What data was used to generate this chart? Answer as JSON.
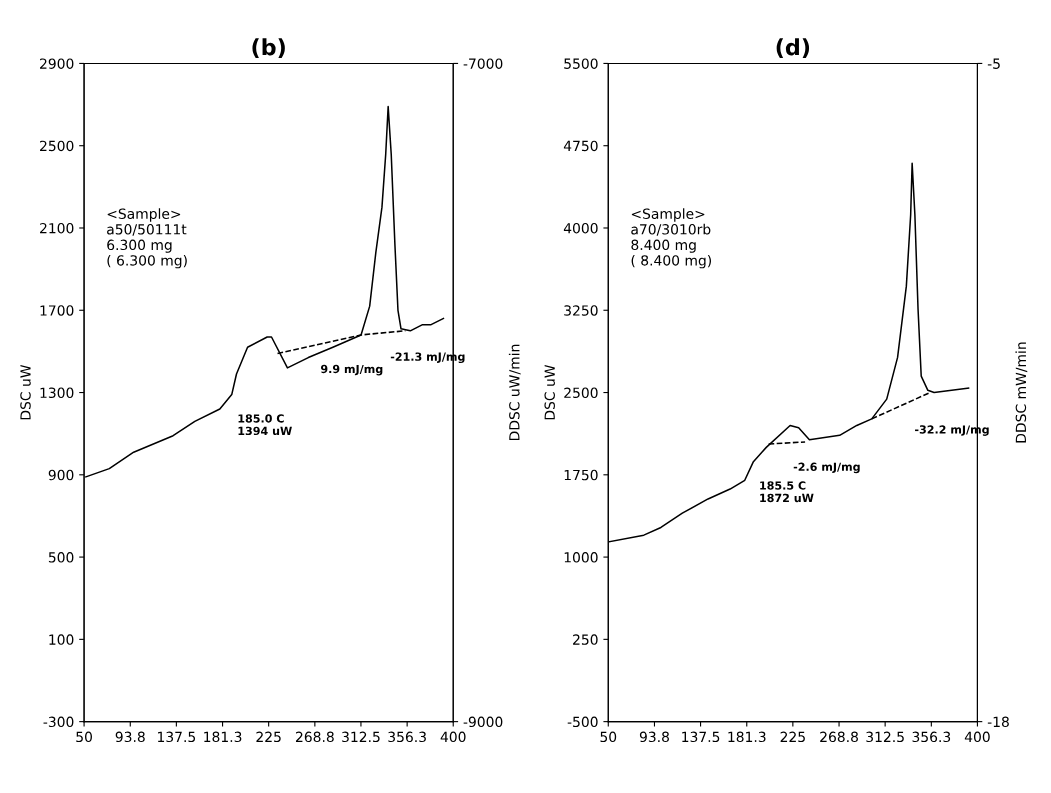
{
  "chart_data": [
    {
      "type": "line",
      "title": "(b)",
      "ylabel": "DSC uW",
      "y2label": "DDSC uW/min",
      "xlim": [
        50,
        400
      ],
      "xticks": [
        50,
        93.8,
        137.5,
        181.3,
        225,
        268.8,
        312.5,
        356.3,
        400
      ],
      "ylim": [
        -300,
        2900
      ],
      "yticks": [
        2900,
        2500,
        2100,
        1700,
        1300,
        900,
        500,
        100,
        -300
      ],
      "y2lim": [
        -9000,
        -7000
      ],
      "y2ticks": [
        -9000,
        -7000
      ],
      "grid": false,
      "marker": "none",
      "series": [
        {
          "color": "#000000",
          "line_style": "solid",
          "x": [
            51.7,
            73.9,
            97,
            134.4,
            155,
            178.7,
            190,
            194.5,
            205,
            223.6,
            227.7,
            242.8,
            262.6,
            285.9,
            312.6,
            320.8,
            326.6,
            332.4,
            336,
            338.3,
            341.2,
            344.7,
            347.6,
            350.5,
            359.3,
            370.9,
            379,
            390.7
          ],
          "values": [
            890,
            930,
            1010,
            1090,
            1160,
            1220,
            1290,
            1390,
            1520,
            1570,
            1570,
            1420,
            1470,
            1520,
            1580,
            1720,
            1980,
            2200,
            2460,
            2690,
            2460,
            2020,
            1700,
            1610,
            1600,
            1630,
            1630,
            1660
          ]
        },
        {
          "color": "#000000",
          "line_style": "dashed",
          "x": [
            233.4,
            312.6,
            354.6
          ],
          "values": [
            1490,
            1580,
            1600
          ]
        }
      ],
      "annotations": [
        {
          "text": "9.9 mJ/mg",
          "x": 268.8,
          "y": 1530
        },
        {
          "text": "-21.3 mJ/mg",
          "x": 335,
          "y": 1590
        },
        {
          "text": "185.0 C\n1394 uW",
          "x": 190,
          "y": 1290
        },
        "<Sample>\na50/50111t\n6.300 mg\n( 6.300 mg)"
      ]
    },
    {
      "type": "line",
      "title": "(d)",
      "ylabel": "DSC uW",
      "y2label": "DDSC mW/min",
      "xlim": [
        50,
        400
      ],
      "xticks": [
        50,
        93.8,
        137.5,
        181.3,
        225,
        268.8,
        312.5,
        356.3,
        400
      ],
      "ylim": [
        -500,
        5500
      ],
      "yticks": [
        5500,
        4750,
        4000,
        3250,
        2500,
        1750,
        1000,
        250,
        -500
      ],
      "y2lim": [
        -18,
        -5
      ],
      "y2ticks": [
        -18,
        -5
      ],
      "grid": false,
      "marker": "none",
      "series": [
        {
          "color": "#000000",
          "line_style": "solid",
          "x": [
            51.2,
            83.7,
            99.9,
            120.2,
            144.6,
            165.5,
            179.4,
            187.6,
            199.8,
            222.4,
            230.5,
            240.7,
            269.4,
            285.6,
            299.8,
            314,
            324.3,
            332.6,
            336.7,
            338.1,
            340.7,
            343.7,
            346.7,
            353,
            358.9,
            391.6
          ],
          "values": [
            1140,
            1200,
            1270,
            1400,
            1530,
            1620,
            1700,
            1870,
            2000,
            2200,
            2180,
            2070,
            2110,
            2200,
            2260,
            2440,
            2820,
            3470,
            4120,
            4590,
            4120,
            3260,
            2650,
            2520,
            2500,
            2540
          ]
        },
        {
          "color": "#000000",
          "line_style": "dashed",
          "x": [
            202,
            236.6
          ],
          "values": [
            2030,
            2050
          ]
        },
        {
          "color": "#000000",
          "line_style": "dashed",
          "x": [
            299.8,
            355
          ],
          "values": [
            2260,
            2500
          ]
        }
      ],
      "annotations": [
        {
          "text": "-2.6 mJ/mg",
          "x": 220,
          "y": 2040
        },
        {
          "text": "-32.2 mJ/mg",
          "x": 335,
          "y": 2380
        },
        {
          "text": "185.5 C\n1872 uW",
          "x": 187.6,
          "y": 1870
        },
        "<Sample>\na70/3010rb\n8.400 mg\n( 8.400 mg)"
      ]
    }
  ]
}
